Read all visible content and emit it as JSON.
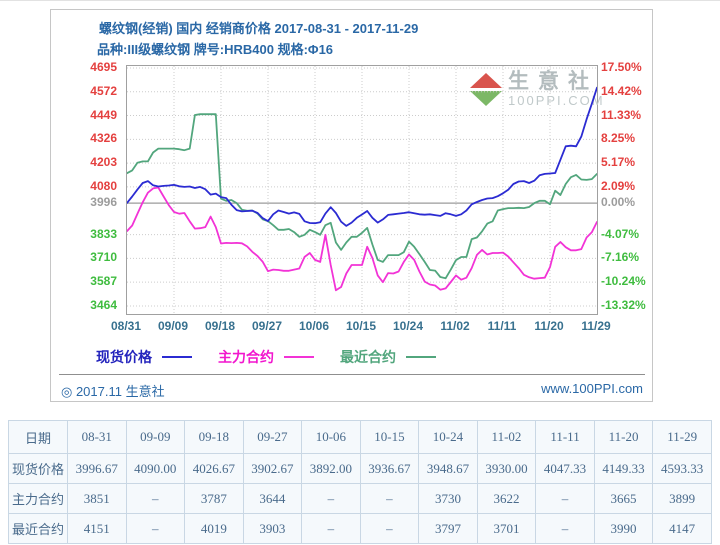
{
  "chart_panel": {
    "title_line1": "螺纹钢(经销) 国内 经销商价格 2017-08-31 - 2017-11-29",
    "title_line2": "品种:III级螺纹钢 牌号:HRB400 规格:Φ16",
    "watermark": {
      "name": "生意社",
      "site": "100PPI.COM"
    },
    "footer_left": "◎ 2017.11 生意社",
    "footer_right": "www.100PPI.com",
    "legend": [
      {
        "label": "现货价格",
        "slug": "spot-price",
        "text_color": "#2424bd",
        "line_color": "#2b2bd2"
      },
      {
        "label": "主力合约",
        "slug": "main-contract",
        "text_color": "#f216ce",
        "line_color": "#f233d6"
      },
      {
        "label": "最近合约",
        "slug": "nearest-contract",
        "text_color": "#52a67d",
        "line_color": "#52a67d"
      }
    ]
  },
  "chart_data": {
    "type": "line",
    "title": "螺纹钢(经销) 国内 经销商价格 2017-08-31 - 2017-11-29",
    "subtitle": "品种:III级螺纹钢 牌号:HRB400 规格:Φ16",
    "x_range_days": [
      0,
      90
    ],
    "x_ticks": [
      "08/31",
      "09/09",
      "09/18",
      "09/27",
      "10/06",
      "10/15",
      "10/24",
      "11/02",
      "11/11",
      "11/20",
      "11/29"
    ],
    "ylim": [
      3423,
      4705
    ],
    "zero_line_value": 3996,
    "grid": true,
    "legend_position": "bottom",
    "colors": {
      "tick_red": "#e4403f",
      "tick_gray": "#9c9c9c",
      "tick_green": "#3fbc3f",
      "grid": "#cccccc",
      "zero_line": "#9b9b9b"
    },
    "y_ticks": [
      {
        "value": 4695,
        "left": "4695",
        "right": "17.50%",
        "tone": "red"
      },
      {
        "value": 4572,
        "left": "4572",
        "right": "14.42%",
        "tone": "red"
      },
      {
        "value": 4449,
        "left": "4449",
        "right": "11.33%",
        "tone": "red"
      },
      {
        "value": 4326,
        "left": "4326",
        "right": "8.25%",
        "tone": "red"
      },
      {
        "value": 4203,
        "left": "4203",
        "right": "5.17%",
        "tone": "red"
      },
      {
        "value": 4080,
        "left": "4080",
        "right": "2.09%",
        "tone": "red"
      },
      {
        "value": 3996,
        "left": "3996",
        "right": "0.00%",
        "tone": "gray"
      },
      {
        "value": 3833,
        "left": "3833",
        "right": "-4.07%",
        "tone": "green"
      },
      {
        "value": 3710,
        "left": "3710",
        "right": "-7.16%",
        "tone": "green"
      },
      {
        "value": 3587,
        "left": "3587",
        "right": "-10.24%",
        "tone": "green"
      },
      {
        "value": 3464,
        "left": "3464",
        "right": "-13.32%",
        "tone": "green"
      }
    ],
    "series": [
      {
        "name": "最近合约",
        "slug": "nearest-contract",
        "color": "#52a67d",
        "points": [
          [
            0,
            4151
          ],
          [
            1,
            4165
          ],
          [
            2,
            4205
          ],
          [
            3,
            4212
          ],
          [
            4,
            4212
          ],
          [
            5,
            4258
          ],
          [
            6,
            4278
          ],
          [
            7,
            4278
          ],
          [
            8,
            4278
          ],
          [
            9,
            4278
          ],
          [
            10,
            4275
          ],
          [
            11,
            4270
          ],
          [
            12,
            4278
          ],
          [
            13,
            4452
          ],
          [
            14,
            4456
          ],
          [
            15,
            4456
          ],
          [
            16,
            4456
          ],
          [
            17,
            4456
          ],
          [
            18,
            4019
          ],
          [
            19,
            4008
          ],
          [
            20,
            4012
          ],
          [
            21,
            3996
          ],
          [
            22,
            3962
          ],
          [
            23,
            3956
          ],
          [
            24,
            3958
          ],
          [
            25,
            3942
          ],
          [
            26,
            3912
          ],
          [
            27,
            3903
          ],
          [
            28,
            3882
          ],
          [
            29,
            3858
          ],
          [
            30,
            3858
          ],
          [
            31,
            3862
          ],
          [
            32,
            3846
          ],
          [
            33,
            3822
          ],
          [
            34,
            3832
          ],
          [
            35,
            3858
          ],
          [
            36,
            3846
          ],
          [
            37,
            3832
          ],
          [
            38,
            3882
          ],
          [
            39,
            3894
          ],
          [
            40,
            3792
          ],
          [
            41,
            3754
          ],
          [
            42,
            3792
          ],
          [
            43,
            3822
          ],
          [
            44,
            3822
          ],
          [
            45,
            3842
          ],
          [
            46,
            3868
          ],
          [
            47,
            3782
          ],
          [
            48,
            3702
          ],
          [
            49,
            3692
          ],
          [
            50,
            3727
          ],
          [
            51,
            3727
          ],
          [
            52,
            3727
          ],
          [
            53,
            3742
          ],
          [
            54,
            3797
          ],
          [
            55,
            3770
          ],
          [
            56,
            3732
          ],
          [
            57,
            3692
          ],
          [
            58,
            3650
          ],
          [
            59,
            3647
          ],
          [
            60,
            3614
          ],
          [
            61,
            3607
          ],
          [
            62,
            3652
          ],
          [
            63,
            3701
          ],
          [
            64,
            3717
          ],
          [
            65,
            3717
          ],
          [
            66,
            3810
          ],
          [
            67,
            3818
          ],
          [
            68,
            3850
          ],
          [
            69,
            3890
          ],
          [
            70,
            3902
          ],
          [
            71,
            3958
          ],
          [
            72,
            3965
          ],
          [
            73,
            3970
          ],
          [
            74,
            3970
          ],
          [
            75,
            3972
          ],
          [
            76,
            3970
          ],
          [
            77,
            3976
          ],
          [
            78,
            3996
          ],
          [
            79,
            4008
          ],
          [
            80,
            4008
          ],
          [
            81,
            3990
          ],
          [
            82,
            4060
          ],
          [
            83,
            4038
          ],
          [
            84,
            4095
          ],
          [
            85,
            4130
          ],
          [
            86,
            4142
          ],
          [
            87,
            4118
          ],
          [
            88,
            4116
          ],
          [
            89,
            4120
          ],
          [
            90,
            4147
          ]
        ]
      },
      {
        "name": "主力合约",
        "slug": "main-contract",
        "color": "#f233d6",
        "points": [
          [
            0,
            3851
          ],
          [
            1,
            3880
          ],
          [
            2,
            3940
          ],
          [
            3,
            4000
          ],
          [
            4,
            4050
          ],
          [
            5,
            4072
          ],
          [
            6,
            4077
          ],
          [
            7,
            4030
          ],
          [
            8,
            3985
          ],
          [
            9,
            3950
          ],
          [
            10,
            3941
          ],
          [
            11,
            3945
          ],
          [
            12,
            3902
          ],
          [
            13,
            3864
          ],
          [
            14,
            3866
          ],
          [
            15,
            3872
          ],
          [
            16,
            3926
          ],
          [
            17,
            3872
          ],
          [
            18,
            3787
          ],
          [
            19,
            3790
          ],
          [
            20,
            3789
          ],
          [
            21,
            3790
          ],
          [
            22,
            3788
          ],
          [
            23,
            3772
          ],
          [
            24,
            3744
          ],
          [
            25,
            3722
          ],
          [
            26,
            3692
          ],
          [
            27,
            3644
          ],
          [
            28,
            3652
          ],
          [
            29,
            3650
          ],
          [
            30,
            3646
          ],
          [
            31,
            3646
          ],
          [
            32,
            3652
          ],
          [
            33,
            3658
          ],
          [
            34,
            3718
          ],
          [
            35,
            3738
          ],
          [
            36,
            3702
          ],
          [
            37,
            3692
          ],
          [
            38,
            3832
          ],
          [
            39,
            3676
          ],
          [
            40,
            3545
          ],
          [
            41,
            3562
          ],
          [
            42,
            3632
          ],
          [
            43,
            3676
          ],
          [
            44,
            3676
          ],
          [
            45,
            3676
          ],
          [
            46,
            3770
          ],
          [
            47,
            3712
          ],
          [
            48,
            3622
          ],
          [
            49,
            3587
          ],
          [
            50,
            3634
          ],
          [
            51,
            3632
          ],
          [
            52,
            3642
          ],
          [
            53,
            3692
          ],
          [
            54,
            3730
          ],
          [
            55,
            3702
          ],
          [
            56,
            3642
          ],
          [
            57,
            3590
          ],
          [
            58,
            3575
          ],
          [
            59,
            3570
          ],
          [
            60,
            3548
          ],
          [
            61,
            3555
          ],
          [
            62,
            3588
          ],
          [
            63,
            3622
          ],
          [
            64,
            3600
          ],
          [
            65,
            3610
          ],
          [
            66,
            3660
          ],
          [
            67,
            3728
          ],
          [
            68,
            3754
          ],
          [
            69,
            3730
          ],
          [
            70,
            3738
          ],
          [
            71,
            3738
          ],
          [
            72,
            3740
          ],
          [
            73,
            3720
          ],
          [
            74,
            3690
          ],
          [
            75,
            3660
          ],
          [
            76,
            3625
          ],
          [
            77,
            3612
          ],
          [
            78,
            3605
          ],
          [
            79,
            3608
          ],
          [
            80,
            3610
          ],
          [
            81,
            3665
          ],
          [
            82,
            3770
          ],
          [
            83,
            3795
          ],
          [
            84,
            3768
          ],
          [
            85,
            3752
          ],
          [
            86,
            3752
          ],
          [
            87,
            3758
          ],
          [
            88,
            3818
          ],
          [
            89,
            3845
          ],
          [
            90,
            3899
          ]
        ]
      },
      {
        "name": "现货价格",
        "slug": "spot-price",
        "color": "#2b2bd2",
        "points": [
          [
            0,
            3997
          ],
          [
            1,
            4030
          ],
          [
            2,
            4066
          ],
          [
            3,
            4100
          ],
          [
            4,
            4110
          ],
          [
            5,
            4088
          ],
          [
            6,
            4082
          ],
          [
            7,
            4085
          ],
          [
            8,
            4087
          ],
          [
            9,
            4090
          ],
          [
            10,
            4083
          ],
          [
            11,
            4080
          ],
          [
            12,
            4082
          ],
          [
            13,
            4074
          ],
          [
            14,
            4080
          ],
          [
            15,
            4068
          ],
          [
            16,
            4040
          ],
          [
            17,
            4045
          ],
          [
            18,
            4027
          ],
          [
            19,
            4022
          ],
          [
            20,
            3988
          ],
          [
            21,
            3960
          ],
          [
            22,
            3953
          ],
          [
            23,
            3955
          ],
          [
            24,
            3957
          ],
          [
            25,
            3945
          ],
          [
            26,
            3918
          ],
          [
            27,
            3903
          ],
          [
            28,
            3938
          ],
          [
            29,
            3958
          ],
          [
            30,
            3950
          ],
          [
            31,
            3942
          ],
          [
            32,
            3948
          ],
          [
            33,
            3940
          ],
          [
            34,
            3902
          ],
          [
            35,
            3893
          ],
          [
            36,
            3892
          ],
          [
            37,
            3897
          ],
          [
            38,
            3942
          ],
          [
            39,
            3975
          ],
          [
            40,
            3945
          ],
          [
            41,
            3900
          ],
          [
            42,
            3878
          ],
          [
            43,
            3895
          ],
          [
            44,
            3920
          ],
          [
            45,
            3937
          ],
          [
            46,
            3955
          ],
          [
            47,
            3920
          ],
          [
            48,
            3895
          ],
          [
            49,
            3912
          ],
          [
            50,
            3935
          ],
          [
            51,
            3938
          ],
          [
            52,
            3942
          ],
          [
            53,
            3945
          ],
          [
            54,
            3949
          ],
          [
            55,
            3944
          ],
          [
            56,
            3938
          ],
          [
            57,
            3936
          ],
          [
            58,
            3938
          ],
          [
            59,
            3934
          ],
          [
            60,
            3930
          ],
          [
            61,
            3944
          ],
          [
            62,
            3938
          ],
          [
            63,
            3930
          ],
          [
            64,
            3938
          ],
          [
            65,
            3958
          ],
          [
            66,
            3990
          ],
          [
            67,
            4002
          ],
          [
            68,
            4012
          ],
          [
            69,
            4020
          ],
          [
            70,
            4022
          ],
          [
            71,
            4032
          ],
          [
            72,
            4047
          ],
          [
            73,
            4065
          ],
          [
            74,
            4095
          ],
          [
            75,
            4108
          ],
          [
            76,
            4110
          ],
          [
            77,
            4100
          ],
          [
            78,
            4112
          ],
          [
            79,
            4140
          ],
          [
            80,
            4147
          ],
          [
            81,
            4149
          ],
          [
            82,
            4152
          ],
          [
            83,
            4220
          ],
          [
            84,
            4290
          ],
          [
            85,
            4293
          ],
          [
            86,
            4290
          ],
          [
            87,
            4340
          ],
          [
            88,
            4430
          ],
          [
            89,
            4510
          ],
          [
            90,
            4593
          ]
        ]
      }
    ]
  },
  "table": {
    "header": [
      "日期",
      "08-31",
      "09-09",
      "09-18",
      "09-27",
      "10-06",
      "10-15",
      "10-24",
      "11-02",
      "11-11",
      "11-20",
      "11-29"
    ],
    "rows": [
      {
        "label": "现货价格",
        "values": [
          "3996.67",
          "4090.00",
          "4026.67",
          "3902.67",
          "3892.00",
          "3936.67",
          "3948.67",
          "3930.00",
          "4047.33",
          "4149.33",
          "4593.33"
        ]
      },
      {
        "label": "主力合约",
        "values": [
          "3851",
          "–",
          "3787",
          "3644",
          "–",
          "–",
          "3730",
          "3622",
          "–",
          "3665",
          "3899"
        ]
      },
      {
        "label": "最近合约",
        "values": [
          "4151",
          "–",
          "4019",
          "3903",
          "–",
          "–",
          "3797",
          "3701",
          "–",
          "3990",
          "4147"
        ]
      }
    ]
  }
}
